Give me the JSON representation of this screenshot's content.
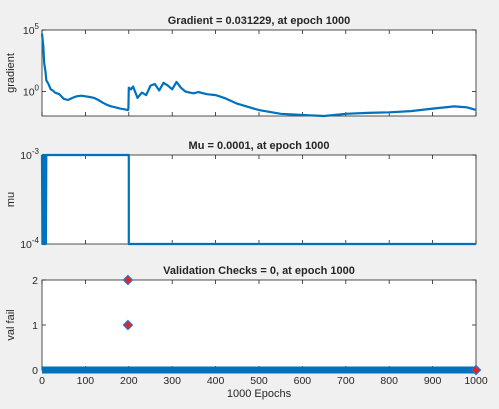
{
  "colors": {
    "background": "#f0f0f0",
    "axes_bg": "#ffffff",
    "line": "#0072bd",
    "marker_fill": "#e8202a",
    "marker_edge": "#1f77c8",
    "text": "#262626"
  },
  "chart_data": [
    {
      "type": "line",
      "title": "Gradient = 0.031229, at epoch 1000",
      "xlabel": "",
      "ylabel": "gradient",
      "yscale": "log",
      "xlim": [
        0,
        1000
      ],
      "ylim": [
        0.01,
        100000
      ],
      "yticks": [
        "10^5",
        "10^0"
      ],
      "grid": false,
      "series": [
        {
          "values_x": [
            0,
            3,
            5,
            8,
            10,
            15,
            20,
            25,
            30,
            40,
            50,
            60,
            70,
            80,
            90,
            100,
            110,
            120,
            130,
            140,
            150,
            160,
            170,
            180,
            190,
            198,
            199,
            200,
            205,
            210,
            220,
            230,
            240,
            250,
            260,
            270,
            280,
            290,
            300,
            310,
            320,
            330,
            340,
            350,
            360,
            380,
            400,
            420,
            450,
            500,
            550,
            600,
            650,
            700,
            750,
            800,
            850,
            900,
            950,
            980,
            1000
          ],
          "values_y": [
            50000,
            5000,
            200,
            40,
            8,
            4,
            1.5,
            1.2,
            0.8,
            0.6,
            0.25,
            0.2,
            0.3,
            0.4,
            0.45,
            0.4,
            0.35,
            0.3,
            0.2,
            0.12,
            0.08,
            0.06,
            0.05,
            0.04,
            0.035,
            0.03,
            0.04,
            2,
            1.5,
            2.5,
            0.3,
            0.8,
            0.5,
            3,
            4,
            1.2,
            5,
            3,
            1.5,
            6,
            2,
            1,
            0.8,
            0.7,
            0.9,
            0.6,
            0.5,
            0.3,
            0.1,
            0.03,
            0.015,
            0.012,
            0.01,
            0.015,
            0.018,
            0.02,
            0.025,
            0.04,
            0.06,
            0.05,
            0.031229
          ]
        }
      ]
    },
    {
      "type": "line",
      "title": "Mu = 0.0001, at epoch 1000",
      "xlabel": "",
      "ylabel": "mu",
      "yscale": "log",
      "xlim": [
        0,
        1000
      ],
      "ylim": [
        0.0001,
        0.001
      ],
      "yticks": [
        "10^-3",
        "10^-4"
      ],
      "grid": false,
      "series": [
        {
          "values_x": [
            0,
            1,
            2,
            3,
            4,
            5,
            6,
            7,
            8,
            9,
            10,
            11,
            200,
            200,
            1000
          ],
          "values_y": [
            0.001,
            0.0001,
            0.001,
            0.0001,
            0.001,
            0.0001,
            0.001,
            0.0001,
            0.001,
            0.0001,
            0.001,
            0.001,
            0.001,
            0.0001,
            0.0001
          ]
        }
      ]
    },
    {
      "type": "scatter",
      "title": "Validation Checks = 0, at epoch 1000",
      "xlabel": "1000 Epochs",
      "ylabel": "val fail",
      "xlim": [
        0,
        1000
      ],
      "ylim": [
        0,
        2
      ],
      "xticks": [
        "0",
        "100",
        "200",
        "300",
        "400",
        "500",
        "600",
        "700",
        "800",
        "900",
        "1000"
      ],
      "yticks": [
        "0",
        "1",
        "2"
      ],
      "grid": false,
      "series": [
        {
          "values_x": [
            0,
            1000
          ],
          "values_y": [
            0,
            0
          ],
          "style": "dense-zero-points"
        }
      ],
      "highlighted_points": [
        {
          "x": 198,
          "y": 1
        },
        {
          "x": 198,
          "y": 2
        },
        {
          "x": 1000,
          "y": 0
        }
      ]
    }
  ]
}
